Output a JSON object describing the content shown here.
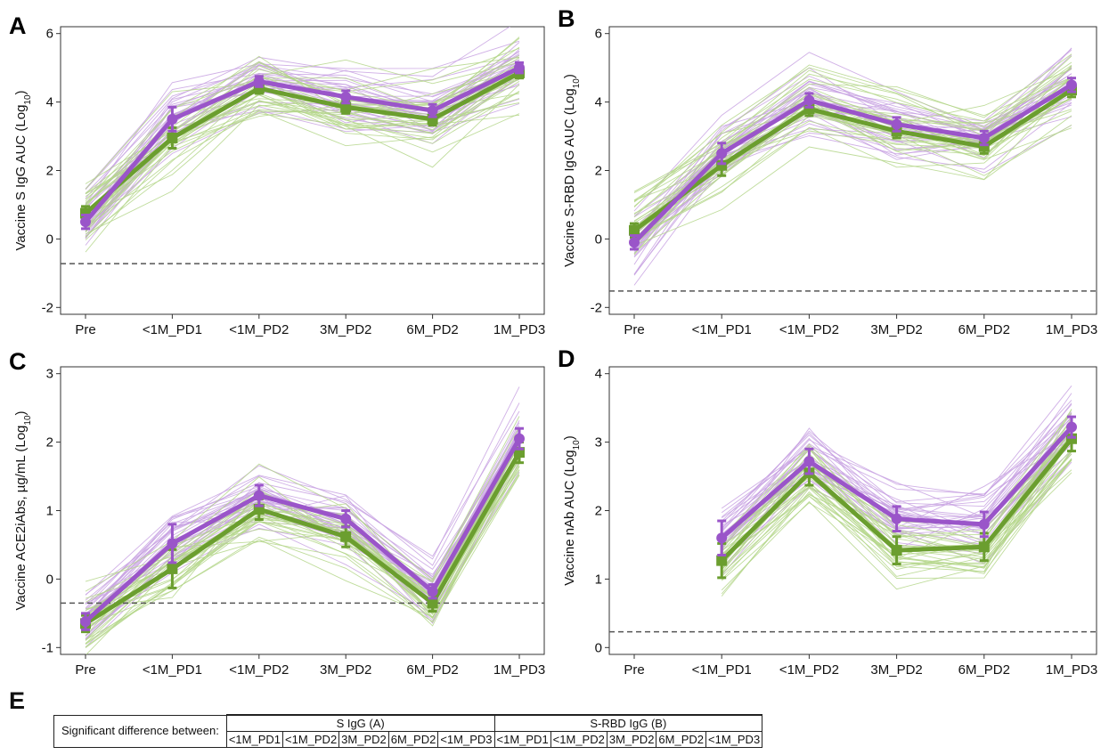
{
  "colors": {
    "group_a": "#9a55c9",
    "group_b": "#6b9e2f",
    "thin_a": "#c8a2e2",
    "thin_b": "#b4d68a",
    "cutoff": "#555555"
  },
  "chart_data": [
    {
      "panel": "A",
      "type": "line",
      "ylabel": "Vaccine S IgG AUC (Log10)",
      "categories": [
        "Pre",
        "<1M_PD1",
        "<1M_PD2",
        "3M_PD2",
        "6M_PD2",
        "1M_PD3"
      ],
      "yticks": [
        -2,
        0,
        2,
        4,
        6
      ],
      "ylim": [
        -2.2,
        6.2
      ],
      "cutoff": -0.72,
      "start_index": 0,
      "series": [
        {
          "values": [
            0.5,
            3.5,
            4.6,
            4.15,
            3.75,
            5.0
          ],
          "err": [
            0.2,
            0.35,
            0.15,
            0.18,
            0.18,
            0.15
          ]
        },
        {
          "values": [
            0.75,
            2.95,
            4.4,
            3.85,
            3.5,
            4.85
          ],
          "err": [
            0.2,
            0.3,
            0.15,
            0.18,
            0.18,
            0.15
          ]
        }
      ]
    },
    {
      "panel": "B",
      "type": "line",
      "ylabel": "Vaccine S-RBD IgG AUC (Log10)",
      "categories": [
        "Pre",
        "<1M_PD1",
        "<1M_PD2",
        "3M_PD2",
        "6M_PD2",
        "1M_PD3"
      ],
      "yticks": [
        -2,
        0,
        2,
        4,
        6
      ],
      "ylim": [
        -2.2,
        6.2
      ],
      "cutoff": -1.52,
      "start_index": 0,
      "series": [
        {
          "values": [
            -0.1,
            2.5,
            4.05,
            3.35,
            2.95,
            4.5
          ],
          "err": [
            0.2,
            0.3,
            0.2,
            0.2,
            0.2,
            0.2
          ]
        },
        {
          "values": [
            0.25,
            2.15,
            3.8,
            3.15,
            2.7,
            4.35
          ],
          "err": [
            0.2,
            0.3,
            0.2,
            0.2,
            0.2,
            0.2
          ]
        }
      ]
    },
    {
      "panel": "C",
      "type": "line",
      "ylabel": "Vaccine ACE2iAbs, µg/mL (Log10)",
      "categories": [
        "Pre",
        "<1M_PD1",
        "<1M_PD2",
        "3M_PD2",
        "6M_PD2",
        "1M_PD3"
      ],
      "yticks": [
        -1,
        0,
        1,
        2,
        3
      ],
      "ylim": [
        -1.1,
        3.1
      ],
      "cutoff": -0.35,
      "start_index": 0,
      "series": [
        {
          "values": [
            -0.62,
            0.52,
            1.22,
            0.88,
            -0.18,
            2.05
          ],
          "err": [
            0.12,
            0.28,
            0.15,
            0.12,
            0.1,
            0.15
          ]
        },
        {
          "values": [
            -0.65,
            0.15,
            1.02,
            0.62,
            -0.35,
            1.85
          ],
          "err": [
            0.12,
            0.28,
            0.15,
            0.15,
            0.12,
            0.15
          ]
        }
      ]
    },
    {
      "panel": "D",
      "type": "line",
      "ylabel": "Vaccine nAb AUC (Log10)",
      "categories": [
        "Pre",
        "<1M_PD1",
        "<1M_PD2",
        "3M_PD2",
        "6M_PD2",
        "1M_PD3"
      ],
      "yticks": [
        0,
        1,
        2,
        3,
        4
      ],
      "ylim": [
        -0.1,
        4.1
      ],
      "cutoff": 0.23,
      "start_index": 1,
      "series": [
        {
          "values": [
            null,
            1.6,
            2.72,
            1.88,
            1.8,
            3.22
          ],
          "err": [
            0,
            0.25,
            0.18,
            0.18,
            0.18,
            0.15
          ]
        },
        {
          "values": [
            null,
            1.27,
            2.55,
            1.42,
            1.47,
            3.05
          ],
          "err": [
            0,
            0.25,
            0.18,
            0.2,
            0.2,
            0.18
          ]
        }
      ]
    }
  ],
  "labels": {
    "a": "A",
    "b": "B",
    "c": "C",
    "d": "D",
    "e": "E"
  },
  "table": {
    "row_header": "Significant difference between:",
    "group_a": "S IgG (A)",
    "group_b": "S-RBD IgG (B)",
    "cols_a": [
      "<1M_PD1",
      "<1M_PD2",
      "3M_PD2",
      "6M_PD2",
      "<1M_PD3"
    ],
    "cols_b": [
      "<1M_PD1",
      "<1M_PD2",
      "3M_PD2",
      "6M_PD2",
      "<1M_PD3"
    ]
  }
}
